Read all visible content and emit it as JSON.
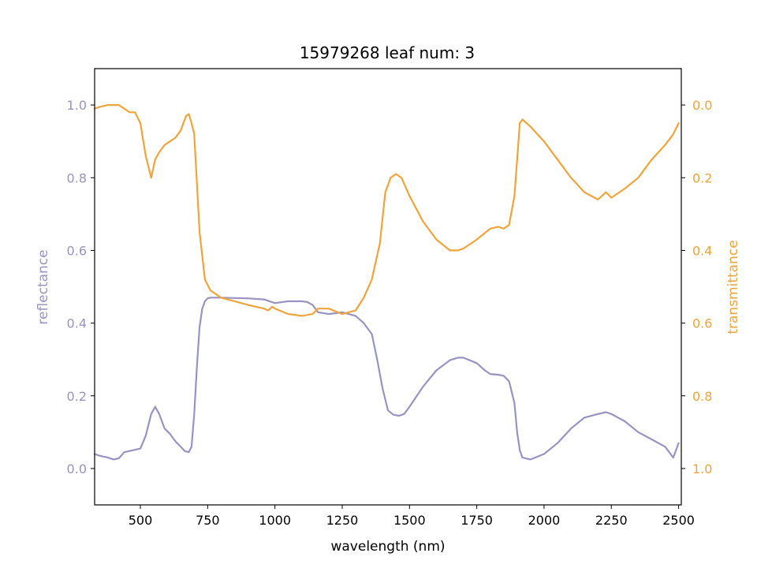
{
  "chart_data": {
    "type": "line",
    "title": "15979268 leaf num: 3",
    "xlabel": "wavelength (nm)",
    "ylabel_left": "reflectance",
    "ylabel_right": "transmittance",
    "xlim": [
      330,
      2510
    ],
    "ylim_left": [
      -0.1,
      1.1
    ],
    "ylim_right_inverted": [
      1.1,
      -0.1
    ],
    "x_ticks": [
      500,
      750,
      1000,
      1250,
      1500,
      1750,
      2000,
      2250,
      2500
    ],
    "y_ticks_left": [
      0.0,
      0.2,
      0.4,
      0.6,
      0.8,
      1.0
    ],
    "y_ticks_right": [
      0.0,
      0.2,
      0.4,
      0.6,
      0.8,
      1.0
    ],
    "grid": false,
    "colors": {
      "reflectance": "#9893c3",
      "transmittance": "#efa43c"
    },
    "series": [
      {
        "axis": "left",
        "x": [
          330,
          350,
          380,
          400,
          420,
          440,
          470,
          500,
          520,
          540,
          555,
          570,
          590,
          610,
          630,
          650,
          665,
          680,
          690,
          700,
          710,
          720,
          730,
          740,
          750,
          760,
          800,
          900,
          960,
          1000,
          1050,
          1100,
          1120,
          1140,
          1160,
          1200,
          1250,
          1300,
          1330,
          1360,
          1380,
          1400,
          1420,
          1440,
          1460,
          1480,
          1500,
          1550,
          1600,
          1650,
          1680,
          1700,
          1750,
          1780,
          1800,
          1830,
          1850,
          1870,
          1890,
          1900,
          1910,
          1920,
          1950,
          2000,
          2050,
          2100,
          2150,
          2200,
          2230,
          2250,
          2300,
          2350,
          2400,
          2450,
          2480,
          2500
        ],
        "y": [
          0.04,
          0.035,
          0.03,
          0.025,
          0.028,
          0.045,
          0.05,
          0.055,
          0.09,
          0.15,
          0.17,
          0.15,
          0.11,
          0.095,
          0.075,
          0.06,
          0.048,
          0.045,
          0.06,
          0.15,
          0.28,
          0.39,
          0.44,
          0.46,
          0.468,
          0.47,
          0.47,
          0.468,
          0.465,
          0.455,
          0.46,
          0.46,
          0.458,
          0.45,
          0.43,
          0.425,
          0.43,
          0.42,
          0.4,
          0.37,
          0.3,
          0.22,
          0.16,
          0.148,
          0.145,
          0.15,
          0.17,
          0.225,
          0.27,
          0.298,
          0.305,
          0.305,
          0.29,
          0.27,
          0.26,
          0.258,
          0.255,
          0.24,
          0.18,
          0.1,
          0.05,
          0.03,
          0.025,
          0.04,
          0.07,
          0.11,
          0.14,
          0.15,
          0.155,
          0.15,
          0.13,
          0.1,
          0.08,
          0.06,
          0.03,
          0.07
        ]
      },
      {
        "axis": "right",
        "x": [
          330,
          350,
          380,
          400,
          420,
          440,
          460,
          480,
          500,
          520,
          540,
          555,
          570,
          590,
          610,
          630,
          650,
          670,
          680,
          690,
          700,
          720,
          740,
          760,
          800,
          900,
          960,
          975,
          990,
          1000,
          1050,
          1100,
          1140,
          1160,
          1200,
          1250,
          1300,
          1330,
          1360,
          1390,
          1410,
          1430,
          1450,
          1470,
          1500,
          1550,
          1600,
          1650,
          1680,
          1700,
          1750,
          1800,
          1830,
          1850,
          1870,
          1890,
          1900,
          1910,
          1920,
          1950,
          2000,
          2050,
          2100,
          2150,
          2200,
          2230,
          2250,
          2300,
          2350,
          2400,
          2450,
          2480,
          2500
        ],
        "y": [
          0.01,
          0.005,
          0.0,
          0.0,
          0.0,
          0.01,
          0.02,
          0.02,
          0.05,
          0.14,
          0.2,
          0.15,
          0.13,
          0.11,
          0.1,
          0.09,
          0.07,
          0.03,
          0.025,
          0.05,
          0.08,
          0.35,
          0.48,
          0.51,
          0.53,
          0.55,
          0.56,
          0.565,
          0.555,
          0.56,
          0.575,
          0.58,
          0.575,
          0.56,
          0.56,
          0.575,
          0.565,
          0.53,
          0.48,
          0.38,
          0.24,
          0.2,
          0.19,
          0.2,
          0.25,
          0.32,
          0.37,
          0.4,
          0.4,
          0.395,
          0.37,
          0.34,
          0.335,
          0.34,
          0.33,
          0.25,
          0.15,
          0.05,
          0.04,
          0.06,
          0.1,
          0.15,
          0.2,
          0.24,
          0.26,
          0.24,
          0.255,
          0.23,
          0.2,
          0.15,
          0.11,
          0.08,
          0.05
        ]
      }
    ]
  }
}
